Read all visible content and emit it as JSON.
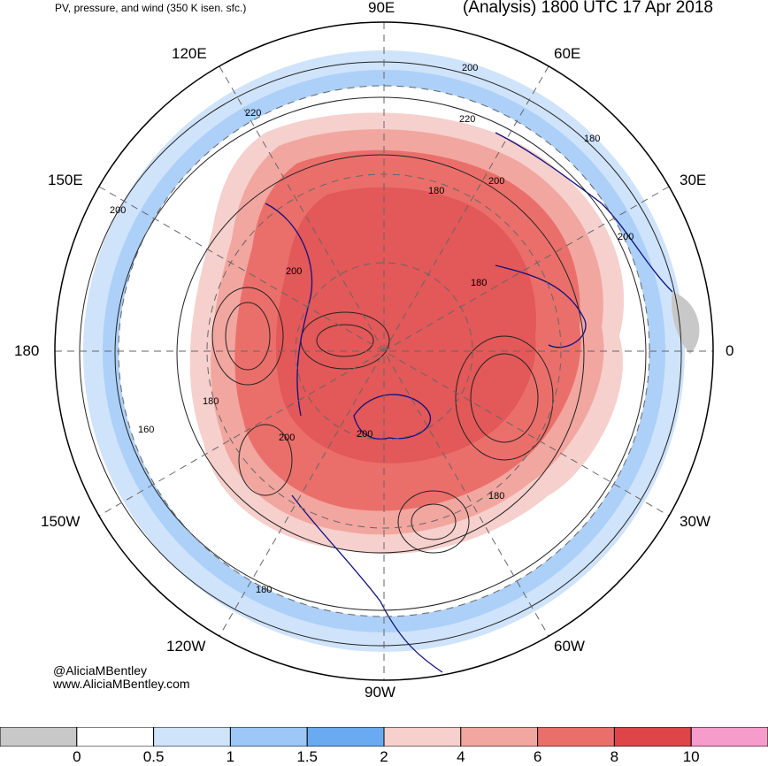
{
  "header": {
    "subtitle": "PV, pressure, and wind (350 K isen. sfc.)",
    "title": "(Analysis) 1800 UTC 17 Apr 2018"
  },
  "longitude_labels": {
    "deg_90e": "90E",
    "deg_60e": "60E",
    "deg_120e": "120E",
    "deg_150e": "150E",
    "deg_30e": "30E",
    "deg_180": "180",
    "deg_0": "0",
    "deg_150w": "150W",
    "deg_30w": "30W",
    "deg_120w": "120W",
    "deg_60w": "60W",
    "deg_90w": "90W"
  },
  "contour_labels": [
    "200",
    "220",
    "180",
    "200",
    "220",
    "200",
    "180",
    "200",
    "200",
    "180",
    "180",
    "160",
    "200",
    "200",
    "180",
    "180"
  ],
  "credits": {
    "handle": "@AliciaMBentley",
    "website": "www.AliciaMBentley.com"
  },
  "colorbar": {
    "colors": [
      "#c8c8c8",
      "#ffffff",
      "#cfe3fb",
      "#9dc7f6",
      "#6aaaf0",
      "#f6d0cc",
      "#f2a6a0",
      "#ea6f6a",
      "#dd4548",
      "#f59ccb"
    ],
    "labels": [
      "0",
      "0.5",
      "1",
      "1.5",
      "2",
      "4",
      "6",
      "8",
      "10"
    ]
  },
  "palette": {
    "coastline": "#101080",
    "contour": "#222222",
    "grid": "#666666"
  }
}
